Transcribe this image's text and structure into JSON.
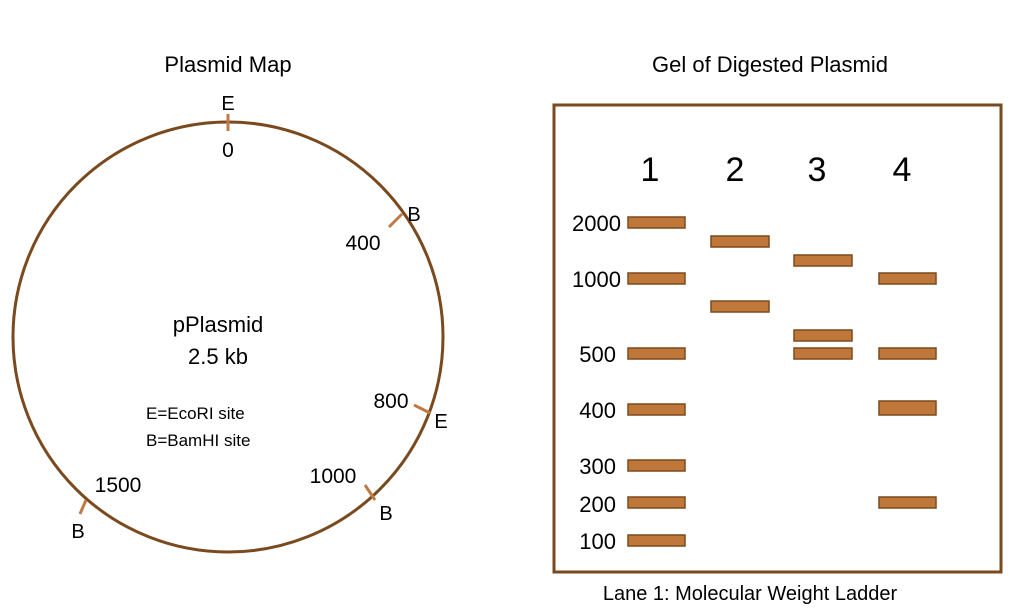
{
  "plasmid_map": {
    "title": "Plasmid Map",
    "name": "pPlasmid",
    "size_label": "2.5 kb",
    "legend": [
      "E=EcoRI site",
      "B=BamHI site"
    ],
    "sites": [
      {
        "enzyme": "E",
        "label": "E",
        "position_label": "0"
      },
      {
        "enzyme": "B",
        "label": "B",
        "position_label": "400"
      },
      {
        "enzyme": "E",
        "label": "E",
        "position_label": "800"
      },
      {
        "enzyme": "B",
        "label": "B",
        "position_label": "1000"
      },
      {
        "enzyme": "B",
        "label": "B",
        "position_label": "1500"
      }
    ]
  },
  "gel": {
    "title": "Gel of Digested Plasmid",
    "lanes": [
      "1",
      "2",
      "3",
      "4"
    ],
    "ladder_sizes": [
      "2000",
      "1000",
      "500",
      "400",
      "300",
      "200",
      "100"
    ],
    "caption": "Lane 1: Molecular Weight Ladder",
    "band_color": "#c0783a",
    "band_border": "#7a4a1e",
    "border_color": "#7a4a1e"
  },
  "colors": {
    "circle": "#7a4a1e",
    "site_tick": "#c07a45"
  }
}
